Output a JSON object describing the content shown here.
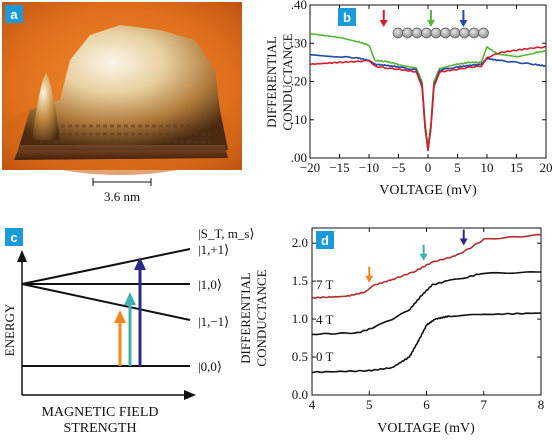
{
  "figure": {
    "panel_a": {
      "badge": "a",
      "scale_bar_label": "3.6 nm",
      "colors": {
        "background": "#e07a20",
        "highlight": "#f4f0e0",
        "shadow": "#2a1206"
      }
    },
    "panel_b": {
      "badge": "b",
      "ylabel_line1": "DIFFERENTIAL",
      "ylabel_line2": "CONDUCTANCE",
      "xlabel": "VOLTAGE (mV)",
      "chart_data": {
        "type": "line",
        "x_ticks": [
          "−20",
          "−15",
          "−10",
          "−5",
          "0",
          "5",
          "10",
          "15",
          "20"
        ],
        "y_ticks": [
          ".00",
          ".10",
          ".20",
          ".30",
          ".40"
        ],
        "xlim": [
          -20,
          20
        ],
        "ylim": [
          0,
          0.4
        ],
        "arrow_markers": [
          {
            "x": -7.5,
            "color": "#d81e2a"
          },
          {
            "x": 0.5,
            "color": "#5ab43a"
          },
          {
            "x": 6,
            "color": "#1f4aa8"
          }
        ],
        "chain_atoms": 10,
        "series": [
          {
            "color": "#5ab43a",
            "points": [
              [
                -20,
                0.325
              ],
              [
                -15,
                0.315
              ],
              [
                -12,
                0.305
              ],
              [
                -10,
                0.295
              ],
              [
                -9,
                0.255
              ],
              [
                -7,
                0.252
              ],
              [
                -5,
                0.245
              ],
              [
                -2,
                0.235
              ],
              [
                -1,
                0.2
              ],
              [
                -0.5,
                0.09
              ],
              [
                0,
                0.03
              ],
              [
                0.5,
                0.09
              ],
              [
                1,
                0.2
              ],
              [
                2,
                0.235
              ],
              [
                5,
                0.245
              ],
              [
                7,
                0.25
              ],
              [
                9,
                0.25
              ],
              [
                10,
                0.29
              ],
              [
                12,
                0.27
              ],
              [
                15,
                0.265
              ],
              [
                18,
                0.275
              ],
              [
                20,
                0.28
              ]
            ]
          },
          {
            "color": "#1f4aa8",
            "points": [
              [
                -20,
                0.27
              ],
              [
                -15,
                0.265
              ],
              [
                -12,
                0.262
              ],
              [
                -10,
                0.255
              ],
              [
                -9,
                0.245
              ],
              [
                -7,
                0.242
              ],
              [
                -5,
                0.238
              ],
              [
                -2,
                0.23
              ],
              [
                -1,
                0.19
              ],
              [
                -0.5,
                0.08
              ],
              [
                0,
                0.02
              ],
              [
                0.5,
                0.08
              ],
              [
                1,
                0.19
              ],
              [
                2,
                0.23
              ],
              [
                5,
                0.238
              ],
              [
                7,
                0.242
              ],
              [
                9,
                0.245
              ],
              [
                10,
                0.26
              ],
              [
                12,
                0.255
              ],
              [
                15,
                0.25
              ],
              [
                18,
                0.245
              ],
              [
                20,
                0.24
              ]
            ]
          },
          {
            "color": "#d81e2a",
            "points": [
              [
                -20,
                0.245
              ],
              [
                -15,
                0.25
              ],
              [
                -12,
                0.252
              ],
              [
                -10,
                0.255
              ],
              [
                -9,
                0.24
              ],
              [
                -7,
                0.235
              ],
              [
                -5,
                0.232
              ],
              [
                -2,
                0.225
              ],
              [
                -1,
                0.185
              ],
              [
                -0.5,
                0.08
              ],
              [
                0,
                0.02
              ],
              [
                0.5,
                0.08
              ],
              [
                1,
                0.185
              ],
              [
                2,
                0.225
              ],
              [
                5,
                0.232
              ],
              [
                7,
                0.237
              ],
              [
                9,
                0.24
              ],
              [
                10,
                0.262
              ],
              [
                12,
                0.275
              ],
              [
                15,
                0.282
              ],
              [
                18,
                0.288
              ],
              [
                20,
                0.29
              ]
            ]
          }
        ]
      }
    },
    "panel_c": {
      "badge": "c",
      "ylabel": "ENERGY",
      "xlabel_line1": "MAGNETIC FIELD",
      "xlabel_line2": "STRENGTH",
      "state_header": "|S_T, m_s⟩",
      "states": [
        "|1,+1⟩",
        "|1,0⟩",
        "|1,−1⟩",
        "|0,0⟩"
      ],
      "transition_colors": [
        "#f08a1e",
        "#3fb1b0",
        "#2a2a8a"
      ]
    },
    "panel_d": {
      "badge": "d",
      "ylabel_line1": "DIFFERENTIAL",
      "ylabel_line2": "CONDUCTANCE",
      "xlabel": "VOLTAGE (mV)",
      "chart_data": {
        "type": "line",
        "x_ticks": [
          "4",
          "5",
          "6",
          "7",
          "8"
        ],
        "y_ticks": [
          "0.0",
          "0.5",
          "1.0",
          "1.5",
          "2.0"
        ],
        "xlim": [
          4,
          8
        ],
        "ylim": [
          0,
          2.2
        ],
        "series_labels": [
          "7 T",
          "4 T",
          "0 T"
        ],
        "arrow_markers": [
          {
            "x": 5.0,
            "color": "#f08a1e"
          },
          {
            "x": 5.95,
            "color": "#3fb1b0"
          },
          {
            "x": 6.65,
            "color": "#2a2a8a"
          }
        ],
        "series": [
          {
            "name": "0 T",
            "color": "#111111",
            "points": [
              [
                4.0,
                0.3
              ],
              [
                5.0,
                0.32
              ],
              [
                5.4,
                0.36
              ],
              [
                5.7,
                0.5
              ],
              [
                5.85,
                0.7
              ],
              [
                6.0,
                0.92
              ],
              [
                6.15,
                1.0
              ],
              [
                6.4,
                1.04
              ],
              [
                7.0,
                1.06
              ],
              [
                8.0,
                1.08
              ]
            ]
          },
          {
            "name": "4 T",
            "color": "#111111",
            "points": [
              [
                4.0,
                0.8
              ],
              [
                4.8,
                0.82
              ],
              [
                5.05,
                0.88
              ],
              [
                5.4,
                1.0
              ],
              [
                5.7,
                1.12
              ],
              [
                5.9,
                1.3
              ],
              [
                6.1,
                1.45
              ],
              [
                6.35,
                1.5
              ],
              [
                6.7,
                1.55
              ],
              [
                6.95,
                1.6
              ],
              [
                8.0,
                1.62
              ]
            ]
          },
          {
            "name": "7 T",
            "color": "#b03030",
            "points": [
              [
                4.0,
                1.28
              ],
              [
                4.6,
                1.3
              ],
              [
                4.9,
                1.35
              ],
              [
                5.1,
                1.45
              ],
              [
                5.4,
                1.52
              ],
              [
                5.8,
                1.63
              ],
              [
                6.1,
                1.75
              ],
              [
                6.5,
                1.83
              ],
              [
                6.75,
                1.93
              ],
              [
                7.0,
                2.05
              ],
              [
                7.5,
                2.08
              ],
              [
                8.0,
                2.11
              ]
            ]
          }
        ]
      }
    }
  }
}
